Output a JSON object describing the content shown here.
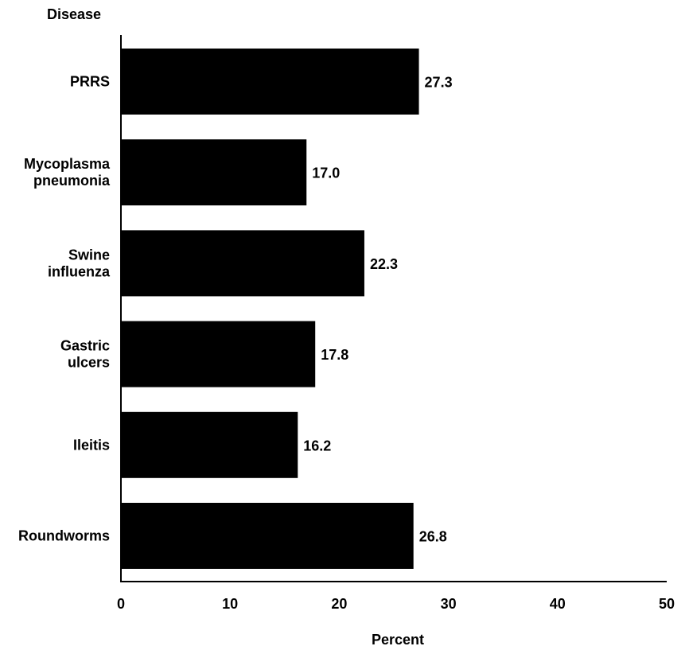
{
  "chart_data": {
    "type": "bar",
    "orientation": "horizontal",
    "ylabel": "Disease",
    "xlabel": "Percent",
    "categories": [
      [
        "PRRS"
      ],
      [
        "Mycoplasma",
        "pneumonia"
      ],
      [
        "Swine",
        "influenza"
      ],
      [
        "Gastric",
        "ulcers"
      ],
      [
        "Ileitis"
      ],
      [
        "Roundworms"
      ]
    ],
    "values": [
      27.3,
      17.0,
      22.3,
      17.8,
      16.2,
      26.8
    ],
    "value_labels": [
      "27.3",
      "17.0",
      "22.3",
      "17.8",
      "16.2",
      "26.8"
    ],
    "xlim": [
      0,
      50
    ],
    "xticks": [
      0,
      10,
      20,
      30,
      40,
      50
    ],
    "bar_color": "#000000",
    "grid": false,
    "legend": "none"
  }
}
